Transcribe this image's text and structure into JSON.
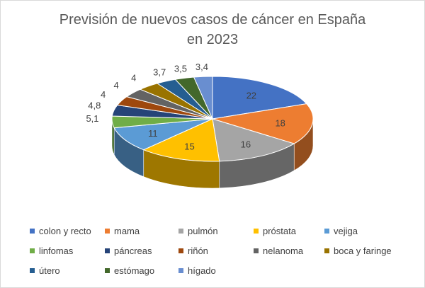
{
  "chart_data": {
    "type": "pie",
    "title_line1": "Previsión de nuevos casos de cáncer en España",
    "title_line2": "en 2023",
    "categories": [
      "colon y recto",
      "mama",
      "pulmón",
      "próstata",
      "vejiga",
      "linfomas",
      "páncreas",
      "riñón",
      "nelanoma",
      "boca y faringe",
      "útero",
      "estómago",
      "hígado"
    ],
    "values": [
      22,
      18,
      16,
      15,
      11,
      5.1,
      4.8,
      4,
      4,
      4,
      3.7,
      3.5,
      3.4
    ],
    "labels": [
      "22",
      "18",
      "16",
      "15",
      "11",
      "5,1",
      "4,8",
      "4",
      "4",
      "4",
      "3,7",
      "3,5",
      "3,4"
    ],
    "colors": [
      "#4472C4",
      "#ED7D31",
      "#A5A5A5",
      "#FFC000",
      "#5B9BD5",
      "#70AD47",
      "#264478",
      "#9E480E",
      "#636363",
      "#997300",
      "#255E91",
      "#43682B",
      "#698ED0"
    ],
    "legend_position": "bottom"
  }
}
